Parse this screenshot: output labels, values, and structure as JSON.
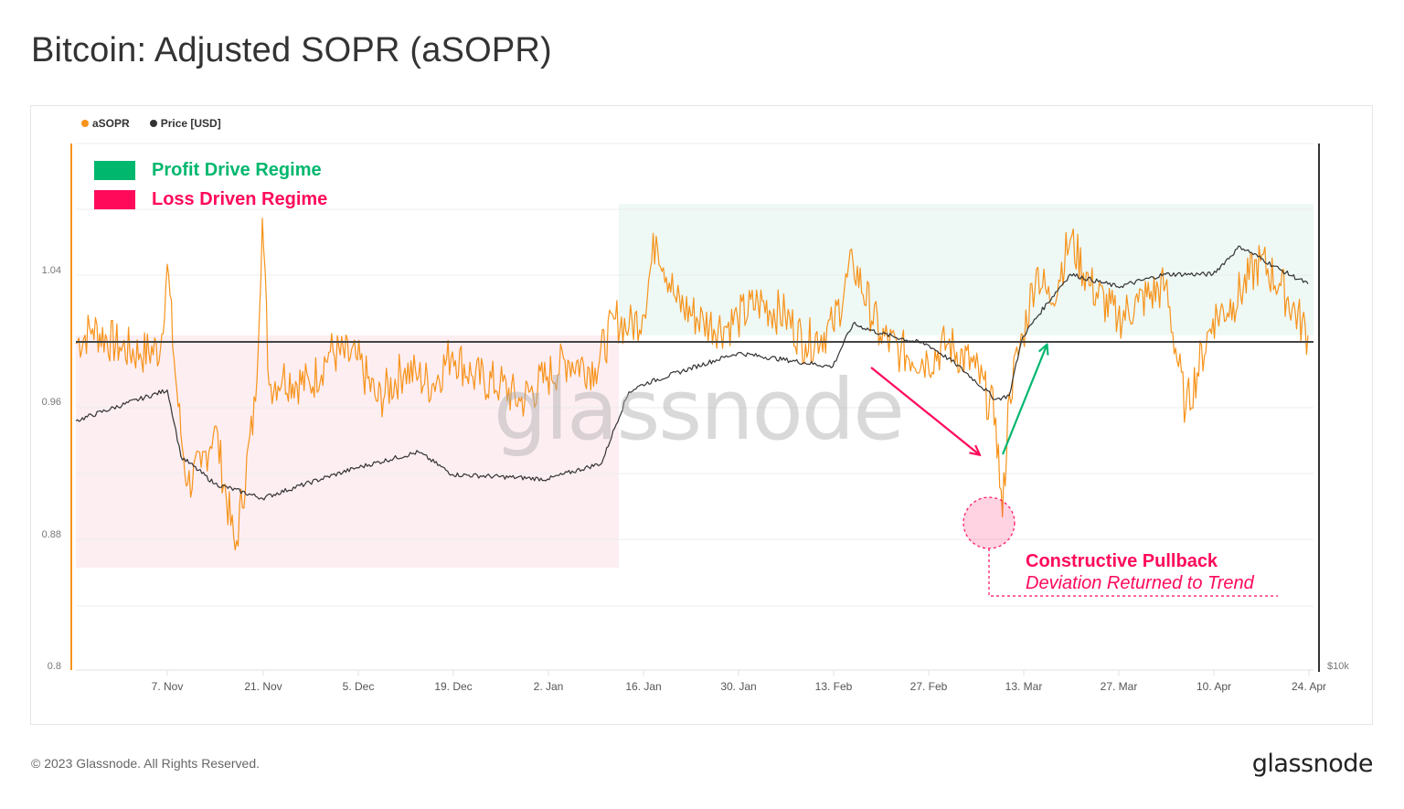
{
  "title": "Bitcoin: Adjusted SOPR (aSOPR)",
  "legend": [
    {
      "label": "aSOPR",
      "color": "#f7931a"
    },
    {
      "label": "Price [USD]",
      "color": "#333333"
    }
  ],
  "regimes": [
    {
      "label": "Profit Drive Regime",
      "color": "#00b76e"
    },
    {
      "label": "Loss Driven Regime",
      "color": "#ff0a5a"
    }
  ],
  "annotation": {
    "title": "Constructive Pullback",
    "subtitle": "Deviation Returned to Trend"
  },
  "watermark": "glassnode",
  "footer": {
    "copyright": "© 2023 Glassnode. All Rights Reserved.",
    "logo": "glassnode"
  },
  "colors": {
    "asopr": "#f7931a",
    "price": "#333333",
    "profit_fill": "#eef8f5",
    "loss_fill": "#fdeef2",
    "accent_pink": "#ff0a5a",
    "accent_green": "#00b76e"
  },
  "chart_data": {
    "type": "line",
    "title": "Bitcoin: Adjusted SOPR (aSOPR)",
    "xlabel": "",
    "ylabel": "aSOPR",
    "y_ticks": [
      0.8,
      0.88,
      0.96,
      1.04
    ],
    "y_tick_labels": [
      "0.8",
      "0.88",
      "0.96",
      "1.04"
    ],
    "ylim": [
      0.8,
      1.08
    ],
    "right_axis_label": "$10k",
    "x_tick_labels": [
      "7. Nov",
      "21. Nov",
      "5. Dec",
      "19. Dec",
      "2. Jan",
      "16. Jan",
      "30. Jan",
      "13. Feb",
      "27. Feb",
      "13. Mar",
      "27. Mar",
      "10. Apr",
      "24. Apr"
    ],
    "reference_line": 1.0,
    "regions": [
      {
        "name": "Loss Driven Regime",
        "from": "24. Oct",
        "to": "14. Jan",
        "y_range": [
          0.875,
          1.0
        ]
      },
      {
        "name": "Profit Drive Regime",
        "from": "14. Jan",
        "to": "24. Apr",
        "y_range": [
          1.0,
          1.081
        ]
      }
    ],
    "grid": true,
    "legend_position": "top-left",
    "series": [
      {
        "name": "aSOPR",
        "x": [
          "24. Oct",
          "27. Oct",
          "31. Oct",
          "3. Nov",
          "6. Nov",
          "7. Nov",
          "8. Nov",
          "9. Nov",
          "10. Nov",
          "12. Nov",
          "14. Nov",
          "17. Nov",
          "20. Nov",
          "21. Nov",
          "22. Nov",
          "24. Nov",
          "28. Nov",
          "1. Dec",
          "5. Dec",
          "8. Dec",
          "12. Dec",
          "14. Dec",
          "16. Dec",
          "19. Dec",
          "22. Dec",
          "26. Dec",
          "29. Dec",
          "2. Jan",
          "5. Jan",
          "9. Jan",
          "12. Jan",
          "14. Jan",
          "16. Jan",
          "18. Jan",
          "21. Jan",
          "25. Jan",
          "28. Jan",
          "30. Jan",
          "2. Feb",
          "6. Feb",
          "9. Feb",
          "13. Feb",
          "16. Feb",
          "20. Feb",
          "23. Feb",
          "27. Feb",
          "2. Mar",
          "6. Mar",
          "9. Mar",
          "10. Mar",
          "11. Mar",
          "13. Mar",
          "15. Mar",
          "17. Mar",
          "20. Mar",
          "23. Mar",
          "27. Mar",
          "30. Mar",
          "3. Apr",
          "6. Apr",
          "10. Apr",
          "13. Apr",
          "17. Apr",
          "20. Apr",
          "24. Apr"
        ],
        "values": [
          0.995,
          1.004,
          0.993,
          0.989,
          0.992,
          1.043,
          0.986,
          0.94,
          0.91,
          0.92,
          0.945,
          0.87,
          0.96,
          1.071,
          0.97,
          0.975,
          0.97,
          0.99,
          0.985,
          0.96,
          0.98,
          0.975,
          0.97,
          0.99,
          0.975,
          0.97,
          0.96,
          0.975,
          0.985,
          0.98,
          1.01,
          1.005,
          1.012,
          1.06,
          1.02,
          1.008,
          1.005,
          1.01,
          1.02,
          1.012,
          0.995,
          1.005,
          1.044,
          1.0,
          0.99,
          0.985,
          0.995,
          0.98,
          0.95,
          0.89,
          0.965,
          1.0,
          1.04,
          1.02,
          1.058,
          1.03,
          1.01,
          1.02,
          1.03,
          0.955,
          1.01,
          1.02,
          1.045,
          1.03,
          1.0
        ]
      },
      {
        "name": "Price [USD]",
        "x": [
          "24. Oct",
          "7. Nov",
          "9. Nov",
          "14. Nov",
          "21. Nov",
          "5. Dec",
          "14. Dec",
          "19. Dec",
          "2. Jan",
          "10. Jan",
          "14. Jan",
          "16. Jan",
          "30. Jan",
          "13. Feb",
          "16. Feb",
          "20. Feb",
          "27. Feb",
          "3. Mar",
          "9. Mar",
          "11. Mar",
          "13. Mar",
          "20. Mar",
          "27. Mar",
          "3. Apr",
          "10. Apr",
          "14. Apr",
          "20. Apr",
          "24. Apr"
        ],
        "values": [
          19300,
          20900,
          17600,
          16400,
          15800,
          17100,
          17800,
          16800,
          16600,
          17300,
          20800,
          21200,
          23000,
          22200,
          24800,
          24200,
          23500,
          22400,
          20400,
          20600,
          24000,
          28200,
          27300,
          28200,
          28200,
          30300,
          28500,
          27500
        ]
      }
    ]
  }
}
